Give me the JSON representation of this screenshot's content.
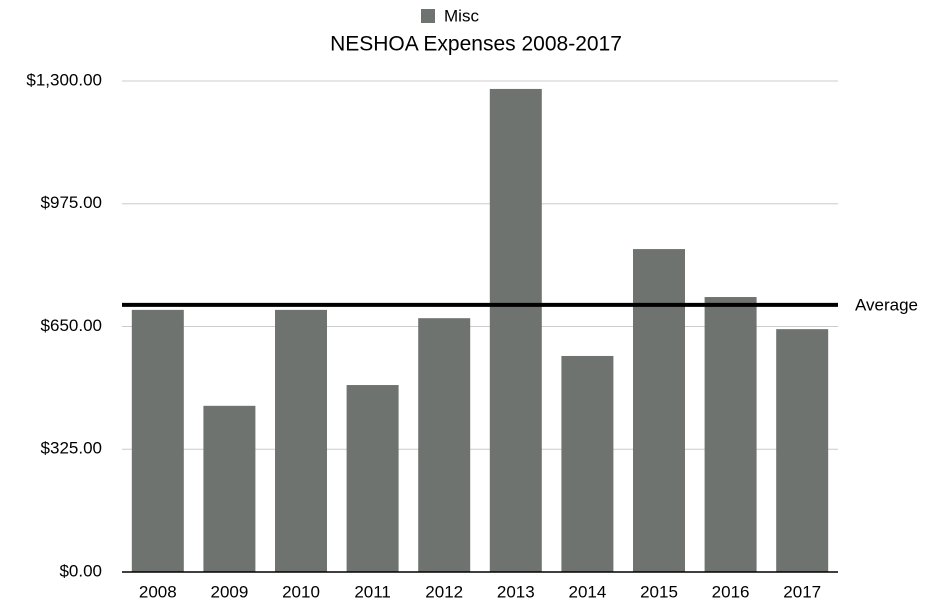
{
  "chart_data": {
    "type": "bar",
    "title": "NESHOA Expenses 2008-2017",
    "categories": [
      "2008",
      "2009",
      "2010",
      "2011",
      "2012",
      "2013",
      "2014",
      "2015",
      "2016",
      "2017"
    ],
    "series": [
      {
        "name": "Misc",
        "color": "#6e736f",
        "values": [
          694,
          440,
          694,
          495,
          672,
          1279,
          572,
          855,
          728,
          643
        ]
      }
    ],
    "average": {
      "label": "Average",
      "value": 707.2
    },
    "ylim": [
      0,
      1300
    ],
    "yticks": [
      {
        "value": 0,
        "label": "$0.00"
      },
      {
        "value": 325,
        "label": "$325.00"
      },
      {
        "value": 650,
        "label": "$650.00"
      },
      {
        "value": 975,
        "label": "$975.00"
      },
      {
        "value": 1300,
        "label": "$1,300.00"
      }
    ],
    "grid": true,
    "legend": "top"
  }
}
